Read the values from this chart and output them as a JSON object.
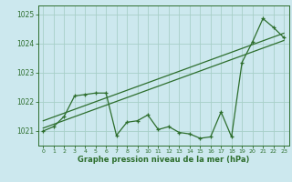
{
  "xlabel": "Graphe pression niveau de la mer (hPa)",
  "bg_color": "#cce8ee",
  "grid_color": "#a8cfc8",
  "line_color": "#2d6e2d",
  "ylim": [
    1020.5,
    1025.3
  ],
  "xlim": [
    -0.5,
    23.5
  ],
  "yticks": [
    1021,
    1022,
    1023,
    1024,
    1025
  ],
  "xticks": [
    0,
    1,
    2,
    3,
    4,
    5,
    6,
    7,
    8,
    9,
    10,
    11,
    12,
    13,
    14,
    15,
    16,
    17,
    18,
    19,
    20,
    21,
    22,
    23
  ],
  "main_x": [
    0,
    1,
    2,
    3,
    4,
    5,
    6,
    7,
    8,
    9,
    10,
    11,
    12,
    13,
    14,
    15,
    16,
    17,
    18,
    19,
    20,
    21,
    22,
    23
  ],
  "main_y": [
    1021.0,
    1021.15,
    1021.5,
    1022.2,
    1022.25,
    1022.3,
    1022.3,
    1020.85,
    1021.3,
    1021.35,
    1021.55,
    1021.05,
    1021.15,
    1020.95,
    1020.9,
    1020.75,
    1020.8,
    1021.65,
    1020.8,
    1023.35,
    1024.05,
    1024.85,
    1024.55,
    1024.2
  ],
  "trend1_x": [
    0,
    23
  ],
  "trend1_y": [
    1021.1,
    1024.1
  ],
  "trend2_x": [
    0,
    23
  ],
  "trend2_y": [
    1021.35,
    1024.35
  ]
}
